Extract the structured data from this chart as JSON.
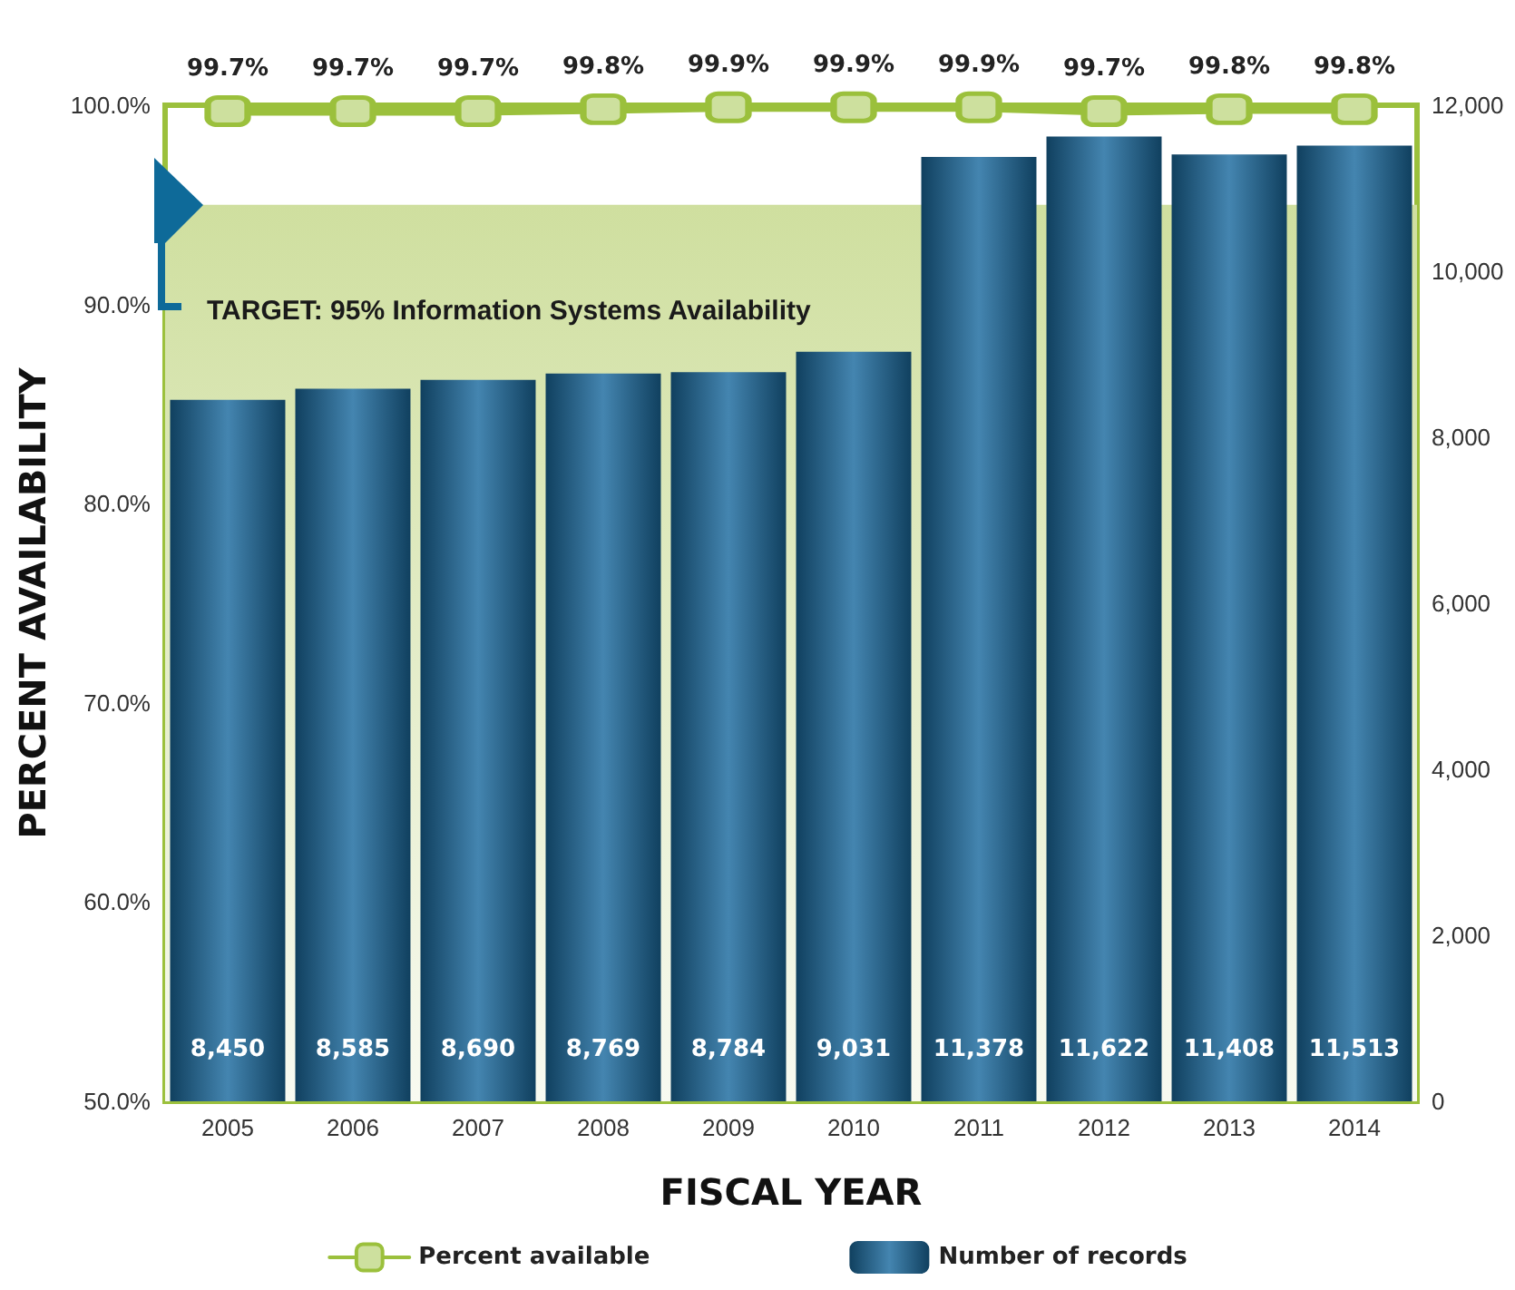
{
  "chart_data": {
    "type": "bar",
    "xlabel": "FISCAL YEAR",
    "ylabel": "PERCENT AVAILABILITY",
    "categories": [
      "2005",
      "2006",
      "2007",
      "2008",
      "2009",
      "2010",
      "2011",
      "2012",
      "2013",
      "2014"
    ],
    "series": [
      {
        "name": "Percent available",
        "type": "line",
        "color": "#9bc03c",
        "values": [
          99.7,
          99.7,
          99.7,
          99.8,
          99.9,
          99.9,
          99.9,
          99.7,
          99.8,
          99.8
        ],
        "value_labels": [
          "99.7%",
          "99.7%",
          "99.7%",
          "99.8%",
          "99.9%",
          "99.9%",
          "99.9%",
          "99.7%",
          "99.8%",
          "99.8%"
        ]
      },
      {
        "name": "Number of records",
        "axis": "y2",
        "color": "#1b6a9f",
        "values": [
          8450,
          8585,
          8690,
          8769,
          8784,
          9031,
          11378,
          11622,
          11408,
          11513
        ],
        "value_labels": [
          "8,450",
          "8,585",
          "8,690",
          "8,769",
          "8,784",
          "9,031",
          "11,378",
          "11,622",
          "11,408",
          "11,513"
        ]
      }
    ],
    "ylim": [
      50,
      100
    ],
    "yticks": [
      {
        "value": 50,
        "label": "50.0%"
      },
      {
        "value": 60,
        "label": "60.0%"
      },
      {
        "value": 70,
        "label": "70.0%"
      },
      {
        "value": 80,
        "label": "80.0%"
      },
      {
        "value": 90,
        "label": "90.0%"
      },
      {
        "value": 100,
        "label": "100.0%"
      }
    ],
    "y2lim": [
      0,
      12000
    ],
    "y2ticks": [
      0,
      {
        "value": 2000,
        "label": "2,000"
      },
      {
        "value": 4000,
        "label": "4,000"
      },
      {
        "value": 6000,
        "label": "6,000"
      },
      {
        "value": 8000,
        "label": "8,000"
      },
      {
        "value": 10000,
        "label": "10,000"
      },
      {
        "value": 12000,
        "label": "12,000"
      }
    ],
    "bands": [
      {
        "axis": "y",
        "from": 50,
        "to": 95,
        "label": "TARGET: 95% Information Systems Availability",
        "color": "#cfdf9f"
      }
    ],
    "marker": "square",
    "legend": "bottom",
    "grid": false
  }
}
